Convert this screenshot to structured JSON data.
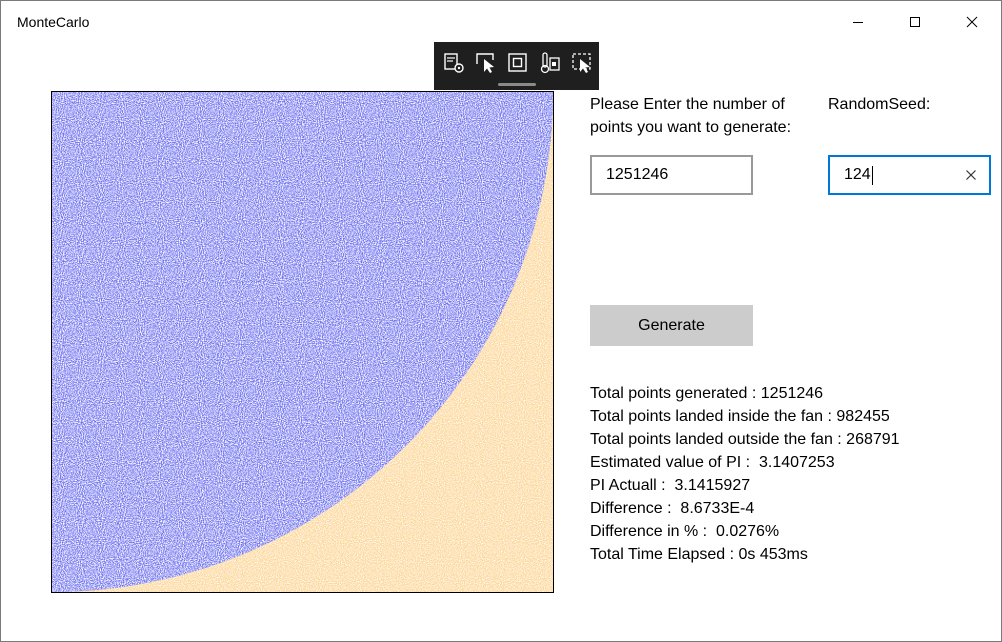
{
  "window": {
    "title": "MonteCarlo"
  },
  "title_bar_icons": [
    "minimize-icon",
    "maximize-icon",
    "close-icon"
  ],
  "dev_toolbar": {
    "tools": [
      "live-visual-tree-icon",
      "select-element-icon",
      "display-layout-adorners-icon",
      "track-focus-icon",
      "select-preview-icon"
    ]
  },
  "inputs": {
    "points_label": "Please Enter  the number of points you want to generate:",
    "points_value": "1251246",
    "seed_label": "RandomSeed:",
    "seed_value": "124"
  },
  "generate_button": {
    "label": "Generate"
  },
  "results": {
    "total_points": "Total points generated : 1251246",
    "inside": "Total points landed inside the fan : 982455",
    "outside": "Total points landed outside the fan : 268791",
    "estimated_pi": "Estimated value of PI :  3.1407253",
    "pi_actual": "PI Actuall :  3.1415927",
    "difference": "Difference :  8.6733E-4",
    "difference_pct": "Difference in % :  0.0276%",
    "time_elapsed": "Total Time Elapsed : 0s 453ms"
  },
  "colors": {
    "inside_fan": "#6c6ff0",
    "outside_fan": "#fdd79a",
    "accent_focus": "#0078d7",
    "button_bg": "#cccccc"
  }
}
